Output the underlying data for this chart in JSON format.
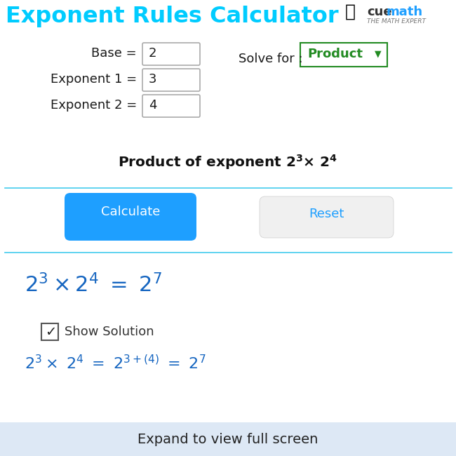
{
  "title": "Exponent Rules Calculator",
  "title_color": "#00CCFF",
  "bg_color": "#FFFFFF",
  "footer_bg": "#DDE8F5",
  "footer_text": "Expand to view full screen",
  "input_fields": [
    {
      "label": "Base =",
      "value": "2"
    },
    {
      "label": "Exponent 1 =",
      "value": "3"
    },
    {
      "label": "Exponent 2 =",
      "value": "4"
    }
  ],
  "solve_label": "Solve for :",
  "dropdown_text": "Product",
  "dropdown_color": "#228B22",
  "calc_button_color": "#1E9FFF",
  "calc_button_text": "Calculate",
  "reset_button_bg": "#F0F0F0",
  "reset_button_text": "Reset",
  "reset_text_color": "#1E9FFF",
  "separator_color": "#44CCEE",
  "result_color": "#1565C0",
  "checkbox_label": "Show Solution",
  "logo_cue_color": "#333333",
  "logo_math_color": "#1E9FFF"
}
